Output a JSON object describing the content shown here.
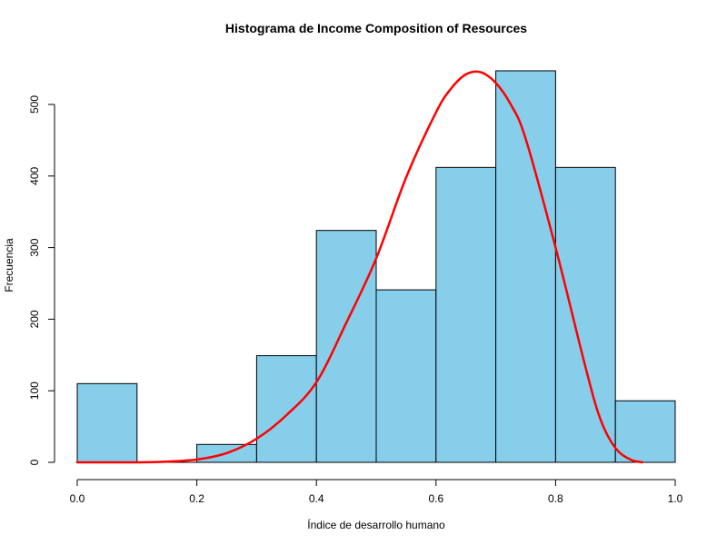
{
  "chart_data": {
    "type": "bar",
    "title": "Histograma de Income Composition of Resources",
    "xlabel": "Índice de desarrollo humano",
    "ylabel": "Frecuencia",
    "xlim": [
      0.0,
      1.0
    ],
    "ylim": [
      0,
      550
    ],
    "x_ticks": [
      0.0,
      0.2,
      0.4,
      0.6,
      0.8,
      1.0
    ],
    "x_tick_labels": [
      "0.0",
      "0.2",
      "0.4",
      "0.6",
      "0.8",
      "1.0"
    ],
    "y_ticks": [
      0,
      100,
      200,
      300,
      400,
      500
    ],
    "y_tick_labels": [
      "0",
      "100",
      "200",
      "300",
      "400",
      "500"
    ],
    "bins": [
      {
        "start": 0.0,
        "end": 0.1,
        "count": 110
      },
      {
        "start": 0.1,
        "end": 0.2,
        "count": 0
      },
      {
        "start": 0.2,
        "end": 0.3,
        "count": 25
      },
      {
        "start": 0.3,
        "end": 0.4,
        "count": 149
      },
      {
        "start": 0.4,
        "end": 0.5,
        "count": 324
      },
      {
        "start": 0.5,
        "end": 0.6,
        "count": 241
      },
      {
        "start": 0.6,
        "end": 0.7,
        "count": 412
      },
      {
        "start": 0.7,
        "end": 0.8,
        "count": 547
      },
      {
        "start": 0.8,
        "end": 0.9,
        "count": 412
      },
      {
        "start": 0.9,
        "end": 1.0,
        "count": 86
      }
    ],
    "bar_color": "#87CEEB",
    "grid": false,
    "density_curve": {
      "color": "#FF0000",
      "x": [
        0.0,
        0.1,
        0.15,
        0.2,
        0.25,
        0.3,
        0.35,
        0.4,
        0.45,
        0.5,
        0.55,
        0.6,
        0.625,
        0.65,
        0.675,
        0.7,
        0.725,
        0.75,
        0.8,
        0.85,
        0.875,
        0.9,
        0.925,
        0.945
      ],
      "y": [
        0,
        0,
        1,
        4,
        13,
        33,
        66,
        112,
        195,
        285,
        398,
        489,
        522,
        542,
        545,
        530,
        500,
        452,
        300,
        133,
        60,
        20,
        4,
        0
      ]
    }
  }
}
